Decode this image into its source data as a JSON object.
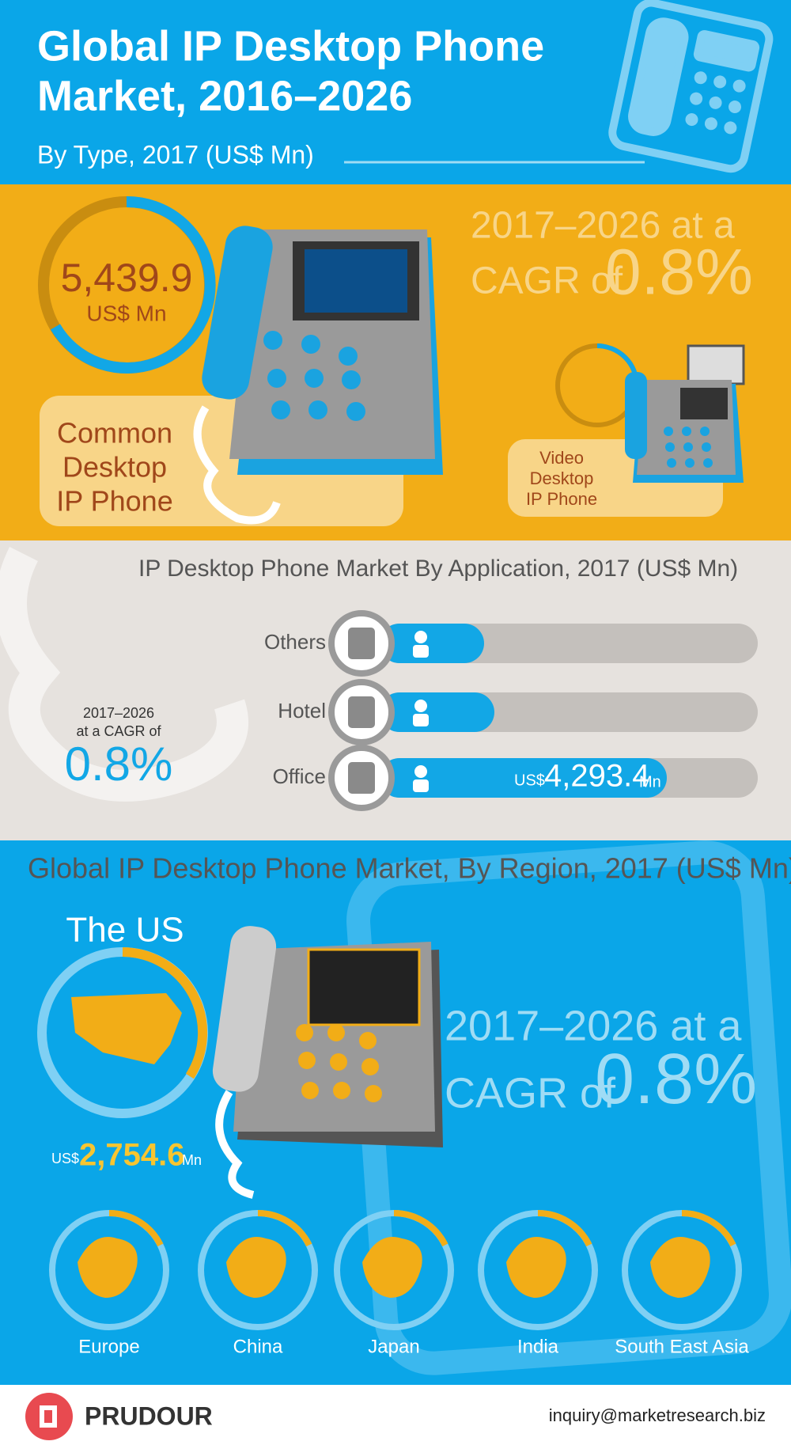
{
  "header": {
    "title_line1": "Global IP Desktop Phone",
    "title_line2": "Market, 2016–2026",
    "subtitle": "By Type, 2017  (US$ Mn)"
  },
  "type_section": {
    "common": {
      "value": "5,439.9",
      "unit": "US$ Mn",
      "label_lines": [
        "Common",
        "Desktop",
        "IP Phone"
      ]
    },
    "cagr": {
      "line1": "2017–2026 at a",
      "line2": "CAGR of",
      "rate": "0.8%"
    },
    "video": {
      "label_lines": [
        "Video",
        "Desktop",
        "IP Phone"
      ]
    }
  },
  "application_section": {
    "title": "IP Desktop Phone Market By Application, 2017 (US$ Mn)",
    "items": [
      "Others",
      "Hotel",
      "Office"
    ],
    "office_value": {
      "currency": "US$",
      "value": "4,293.4",
      "unit": "Mn"
    },
    "cagr": {
      "line1": "2017–2026",
      "line2": "at a CAGR of",
      "rate": "0.8%"
    }
  },
  "region_section": {
    "title": "Global IP Desktop Phone Market, By Region, 2017 (US$ Mn)",
    "us": {
      "label": "The US",
      "currency": "US$",
      "value": "2,754.6",
      "unit": "Mn"
    },
    "cagr": {
      "line1": "2017–2026 at a",
      "line2": "CAGR of",
      "rate": "0.8%"
    },
    "regions": [
      "Europe",
      "China",
      "Japan",
      "India",
      "South East Asia"
    ]
  },
  "footer": {
    "brand": "PRUDOUR",
    "email": "inquiry@marketresearch.biz"
  }
}
